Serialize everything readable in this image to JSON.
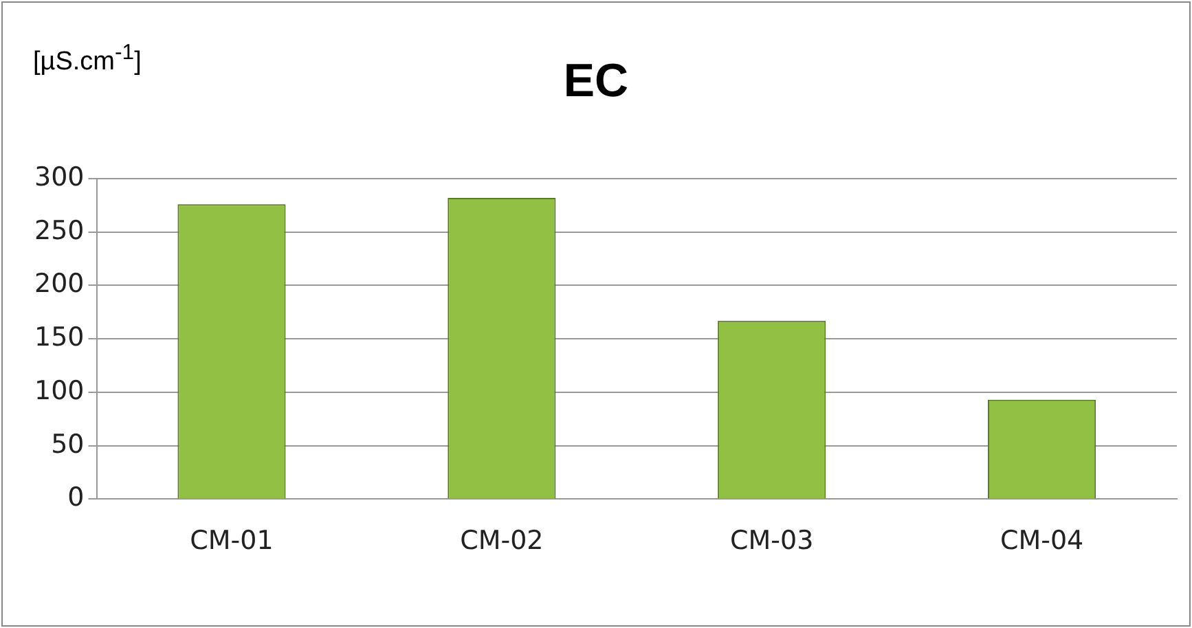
{
  "chart_data": {
    "type": "bar",
    "title": "EC",
    "ylabel": "[µS.cm$^{-1}$]",
    "categories": [
      "CM-01",
      "CM-02",
      "CM-03",
      "CM-04"
    ],
    "values": [
      276,
      282,
      167,
      93
    ],
    "color": "#92c045",
    "ylim": [
      0,
      300
    ],
    "yticks": [
      0,
      50,
      100,
      150,
      200,
      250,
      300
    ],
    "grid": "y",
    "legend": false
  }
}
